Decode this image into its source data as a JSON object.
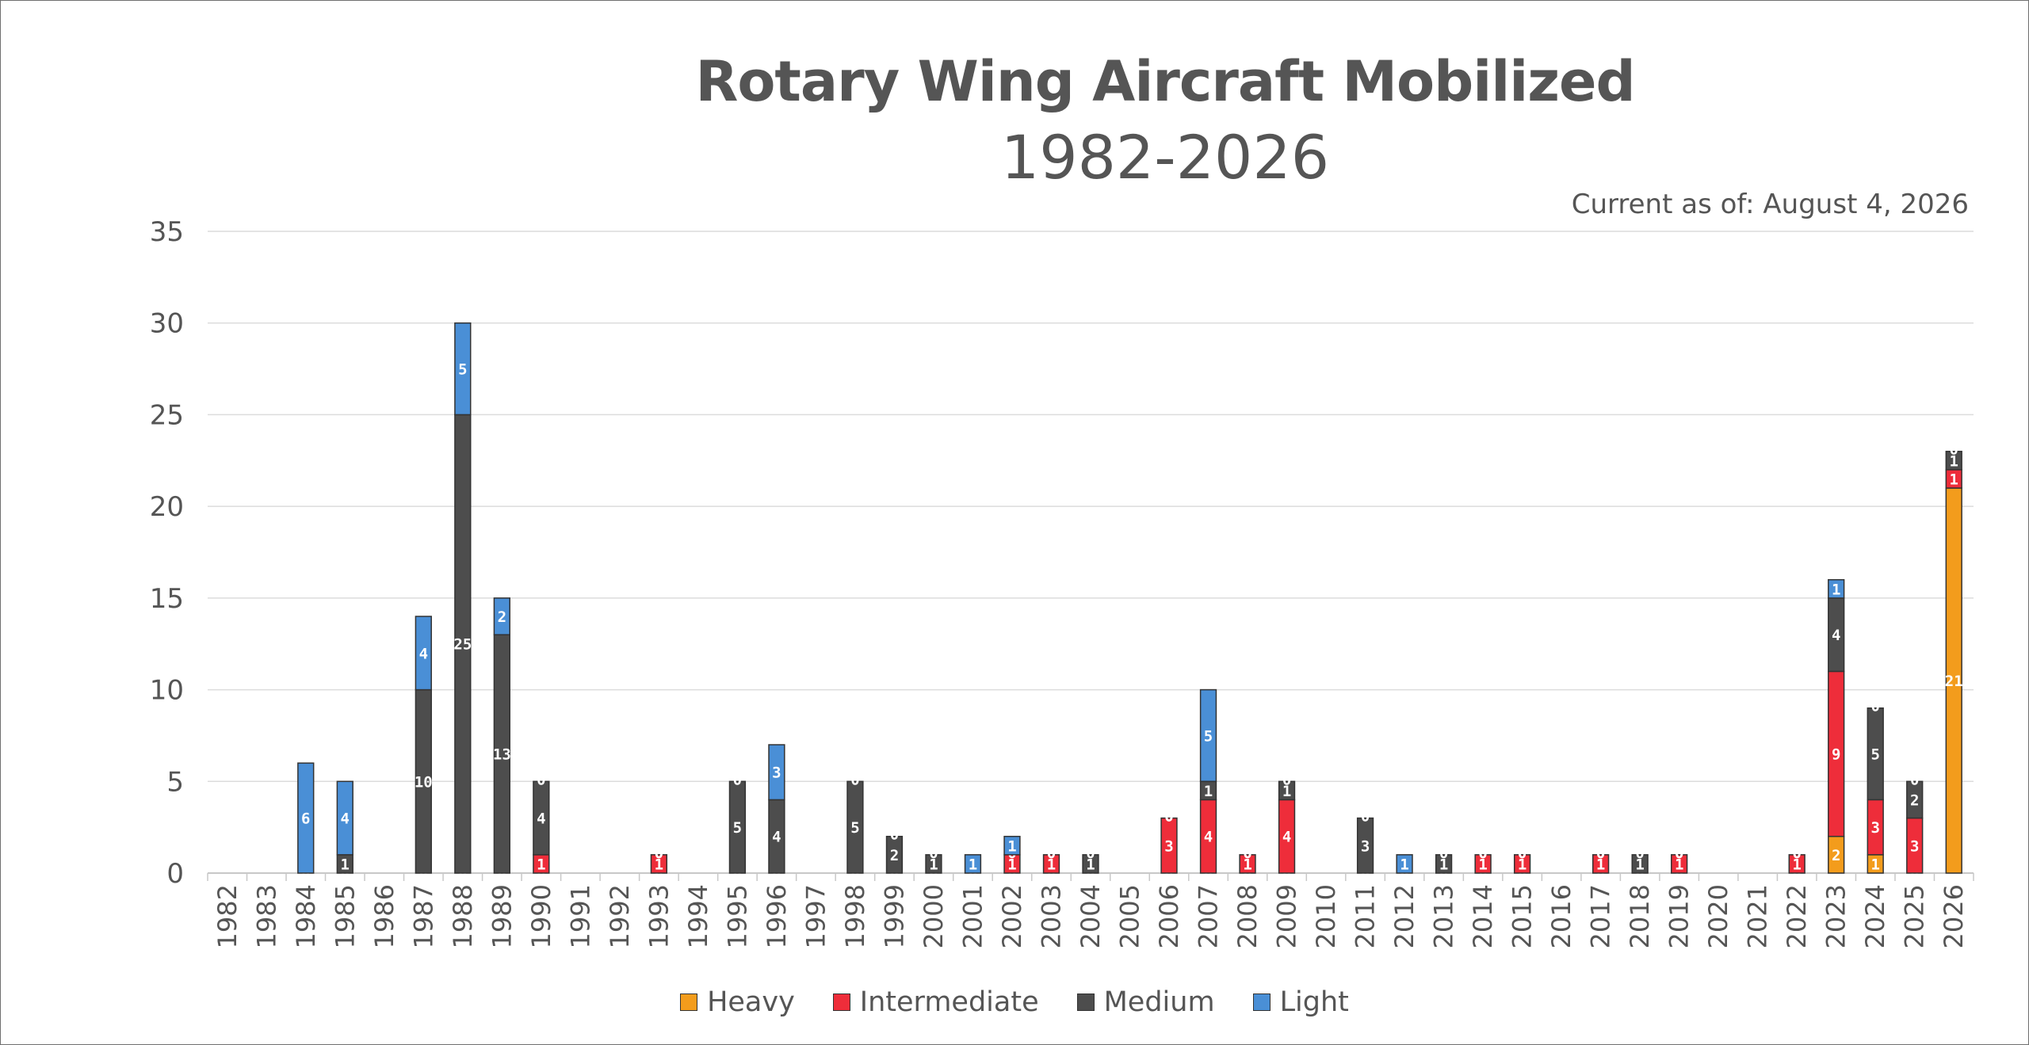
{
  "chart_data": {
    "type": "bar",
    "stacked": true,
    "title": "Rotary Wing Aircraft Mobilized",
    "subtitle": "1982-2026",
    "note": "Current as of: August 4, 2026",
    "xlabel": "",
    "ylabel": "",
    "ylim": [
      0,
      35
    ],
    "yticks": [
      0,
      5,
      10,
      15,
      20,
      25,
      30,
      35
    ],
    "grid": true,
    "legend_position": "bottom",
    "categories": [
      "1982",
      "1983",
      "1984",
      "1985",
      "1986",
      "1987",
      "1988",
      "1989",
      "1990",
      "1991",
      "1992",
      "1993",
      "1994",
      "1995",
      "1996",
      "1997",
      "1998",
      "1999",
      "2000",
      "2001",
      "2002",
      "2003",
      "2004",
      "2005",
      "2006",
      "2007",
      "2008",
      "2009",
      "2010",
      "2011",
      "2012",
      "2013",
      "2014",
      "2015",
      "2016",
      "2017",
      "2018",
      "2019",
      "2020",
      "2021",
      "2022",
      "2023",
      "2024",
      "2025",
      "2026"
    ],
    "series": [
      {
        "name": "Heavy",
        "color": "#f39c1c",
        "values": [
          0,
          0,
          0,
          0,
          0,
          0,
          0,
          0,
          0,
          0,
          0,
          0,
          0,
          0,
          0,
          0,
          0,
          0,
          0,
          0,
          0,
          0,
          0,
          0,
          0,
          0,
          0,
          0,
          0,
          0,
          0,
          0,
          0,
          0,
          0,
          0,
          0,
          0,
          0,
          0,
          0,
          2,
          1,
          0,
          21
        ]
      },
      {
        "name": "Intermediate",
        "color": "#ee2d3a",
        "values": [
          0,
          0,
          0,
          0,
          0,
          0,
          0,
          0,
          1,
          0,
          0,
          1,
          0,
          0,
          0,
          0,
          0,
          0,
          0,
          0,
          1,
          1,
          0,
          0,
          3,
          4,
          1,
          4,
          0,
          0,
          0,
          0,
          1,
          1,
          0,
          1,
          0,
          1,
          0,
          0,
          1,
          9,
          3,
          3,
          1
        ]
      },
      {
        "name": "Medium",
        "color": "#4d4d4d",
        "values": [
          0,
          0,
          0,
          1,
          0,
          10,
          25,
          13,
          4,
          0,
          0,
          0,
          0,
          5,
          4,
          0,
          5,
          2,
          1,
          0,
          0,
          0,
          1,
          0,
          0,
          1,
          0,
          1,
          0,
          3,
          0,
          1,
          0,
          0,
          0,
          0,
          1,
          0,
          0,
          0,
          0,
          4,
          5,
          2,
          1
        ]
      },
      {
        "name": "Light",
        "color": "#4a8fd6",
        "values": [
          0,
          0,
          6,
          4,
          0,
          4,
          5,
          2,
          0,
          0,
          0,
          0,
          0,
          0,
          3,
          0,
          0,
          0,
          0,
          1,
          1,
          0,
          0,
          0,
          0,
          5,
          0,
          0,
          0,
          0,
          1,
          0,
          0,
          0,
          0,
          0,
          0,
          0,
          0,
          0,
          0,
          1,
          0,
          0,
          0
        ]
      }
    ]
  }
}
